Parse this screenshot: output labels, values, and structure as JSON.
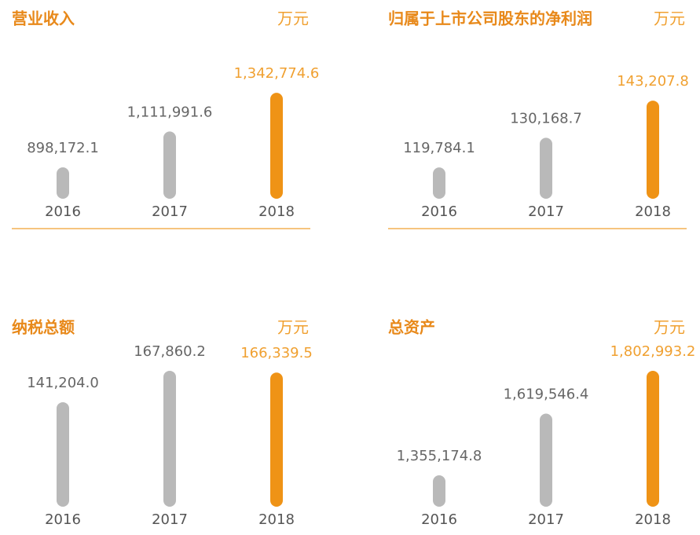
{
  "chart_data": [
    {
      "type": "bar",
      "title": "营业收入",
      "unit": "万元",
      "categories": [
        "2016",
        "2017",
        "2018"
      ],
      "values": [
        898172.1,
        1111991.6,
        1342774.6
      ],
      "value_labels": [
        "898,172.1",
        "1,111,991.6",
        "1,342,774.6"
      ],
      "colors": [
        "#b9b9b9",
        "#b9b9b9",
        "#ef9316"
      ],
      "label_colors": [
        "#666666",
        "#666666",
        "#f0a030"
      ],
      "ylim": [
        711000,
        1474500
      ],
      "baseline_line": true
    },
    {
      "type": "bar",
      "title": "归属于上市公司股东的净利润",
      "unit": "万元",
      "categories": [
        "2016",
        "2017",
        "2018"
      ],
      "values": [
        119784.1,
        130168.7,
        143207.8
      ],
      "value_labels": [
        "119,784.1",
        "130,168.7",
        "143,207.8"
      ],
      "colors": [
        "#b9b9b9",
        "#b9b9b9",
        "#ef9316"
      ],
      "label_colors": [
        "#666666",
        "#666666",
        "#f0a030"
      ],
      "ylim": [
        108800,
        153700
      ],
      "baseline_line": true
    },
    {
      "type": "bar",
      "title": "纳税总额",
      "unit": "万元",
      "categories": [
        "2016",
        "2017",
        "2018"
      ],
      "values": [
        141204.0,
        167860.2,
        166339.5
      ],
      "value_labels": [
        "141,204.0",
        "167,860.2",
        "166,339.5"
      ],
      "colors": [
        "#b9b9b9",
        "#b9b9b9",
        "#ef9316"
      ],
      "label_colors": [
        "#666666",
        "#666666",
        "#f0a030"
      ],
      "ylim": [
        52500,
        172500
      ],
      "baseline_line": false
    },
    {
      "type": "bar",
      "title": "总资产",
      "unit": "万元",
      "categories": [
        "2016",
        "2017",
        "2018"
      ],
      "values": [
        1355174.8,
        1619546.4,
        1802993.2
      ],
      "value_labels": [
        "1,355,174.8",
        "1,619,546.4",
        "1,802,993.2"
      ],
      "colors": [
        "#b9b9b9",
        "#b9b9b9",
        "#ef9316"
      ],
      "label_colors": [
        "#666666",
        "#666666",
        "#f0a030"
      ],
      "ylim": [
        1220500,
        1826500
      ],
      "baseline_line": false
    }
  ]
}
